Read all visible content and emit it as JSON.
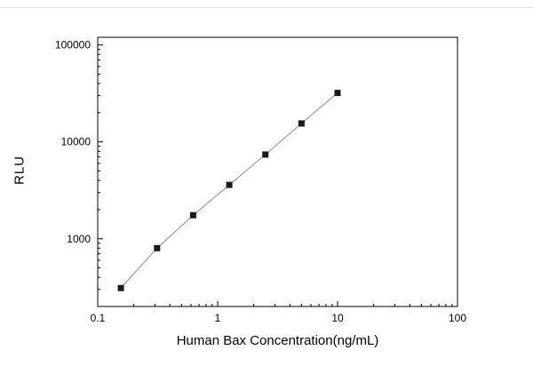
{
  "figure": {
    "xlabel": "Human Bax Concentration(ng/mL)",
    "ylabel": "RLU"
  },
  "chart_data": {
    "type": "scatter",
    "title": "",
    "xlabel": "Human Bax Concentration(ng/mL)",
    "ylabel": "RLU",
    "xscale": "log",
    "yscale": "log",
    "xlim": [
      0.1,
      100
    ],
    "ylim": [
      200,
      120000
    ],
    "x": [
      0.156,
      0.3125,
      0.625,
      1.25,
      2.5,
      5,
      10
    ],
    "y": [
      310,
      800,
      1750,
      3600,
      7400,
      15500,
      32000
    ],
    "x_tick_values": [
      0.1,
      1,
      10,
      100
    ],
    "x_tick_labels": [
      "0.1",
      "1",
      "10",
      "100"
    ],
    "y_tick_values": [
      1000,
      10000,
      100000
    ],
    "y_tick_labels": [
      "1000",
      "10000",
      "100000"
    ],
    "grid": false,
    "legend": null,
    "line_color": "#8c8c8c",
    "marker": "square",
    "marker_color": "#1a1a1a",
    "axis_color": "#000000"
  }
}
